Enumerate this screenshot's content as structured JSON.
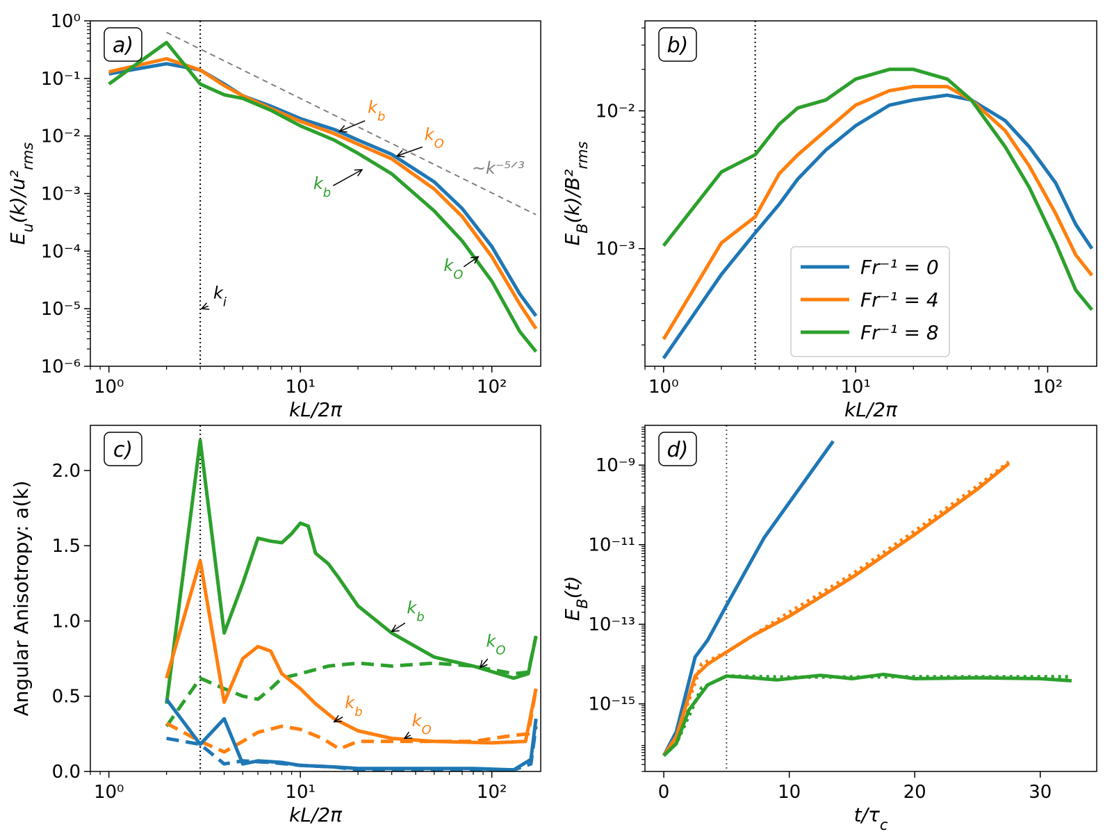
{
  "colors": {
    "blue": "#1f77b4",
    "orange": "#ff7f0e",
    "green": "#2ca02c",
    "gray": "#808080"
  },
  "legend": [
    {
      "label": "Fr⁻¹ = 0",
      "color": "#1f77b4"
    },
    {
      "label": "Fr⁻¹ = 4",
      "color": "#ff7f0e"
    },
    {
      "label": "Fr⁻¹ = 8",
      "color": "#2ca02c"
    }
  ],
  "chart_data": [
    {
      "id": "a",
      "type": "line",
      "title": "a)",
      "xlabel": "kL/2π",
      "ylabel": "E_u(k)/u²_rms",
      "xscale": "log",
      "yscale": "log",
      "xlim": [
        0.8,
        180
      ],
      "ylim": [
        1e-06,
        1
      ],
      "xticks": [
        1,
        10,
        100
      ],
      "xtick_labels": [
        "10⁰",
        "10¹",
        "10²"
      ],
      "yticks": [
        1e-06,
        1e-05,
        0.0001,
        0.001,
        0.01,
        0.1,
        1
      ],
      "ytick_labels": [
        "10⁻⁶",
        "10⁻⁵",
        "10⁻⁴",
        "10⁻³",
        "10⁻²",
        "10⁻¹",
        "10⁰"
      ],
      "vline": 3,
      "series": [
        {
          "name": "Fr⁻¹ = 0",
          "color": "#1f77b4",
          "dash": "solid",
          "x": [
            1,
            2,
            3,
            4,
            5,
            7,
            10,
            15,
            20,
            30,
            50,
            70,
            100,
            140,
            170
          ],
          "y": [
            0.12,
            0.18,
            0.14,
            0.08,
            0.05,
            0.033,
            0.02,
            0.013,
            0.0085,
            0.0048,
            0.0016,
            0.00055,
            0.00012,
            1.8e-05,
            7.5e-06
          ]
        },
        {
          "name": "Fr⁻¹ = 4",
          "color": "#ff7f0e",
          "dash": "solid",
          "x": [
            1,
            2,
            3,
            4,
            5,
            7,
            10,
            15,
            20,
            30,
            50,
            70,
            100,
            140,
            170
          ],
          "y": [
            0.13,
            0.22,
            0.14,
            0.075,
            0.05,
            0.03,
            0.018,
            0.011,
            0.0072,
            0.004,
            0.0012,
            0.0004,
            8e-05,
            1.2e-05,
            4.5e-06
          ]
        },
        {
          "name": "Fr⁻¹ = 8",
          "color": "#2ca02c",
          "dash": "solid",
          "x": [
            1,
            2,
            3,
            4,
            5,
            7,
            10,
            15,
            20,
            30,
            50,
            70,
            100,
            140,
            170
          ],
          "y": [
            0.08,
            0.42,
            0.08,
            0.052,
            0.045,
            0.028,
            0.015,
            0.0085,
            0.005,
            0.0022,
            0.0005,
            0.00015,
            3e-05,
            4e-06,
            1.8e-06
          ]
        },
        {
          "name": "k^-5/3",
          "color": "#808080",
          "dash": "dashed",
          "width": 2,
          "x": [
            2,
            170
          ],
          "y": [
            0.63,
            0.00043
          ]
        }
      ],
      "annotations": [
        {
          "text": "k_b",
          "color": "#ff7f0e",
          "tx": 25,
          "ty": 0.025,
          "ax": 16,
          "ay": 0.012
        },
        {
          "text": "k_O",
          "color": "#ff7f0e",
          "tx": 50,
          "ty": 0.0085,
          "ax": 32,
          "ay": 0.0045
        },
        {
          "text": "k_b",
          "color": "#2ca02c",
          "tx": 13,
          "ty": 0.0012,
          "ax": 21,
          "ay": 0.0026
        },
        {
          "text": "k_O",
          "color": "#2ca02c",
          "tx": 63,
          "ty": 4.5e-05,
          "ax": 85,
          "ay": 8e-05
        },
        {
          "text": "k_i",
          "color": "#000000",
          "tx": 3.8,
          "ty": 1.5e-05,
          "ax": 3.05,
          "ay": 1e-05
        },
        {
          "text": "~k⁻⁵ᐟ³",
          "color": "#808080",
          "tx": 108,
          "ty": 0.0022,
          "nolink": true
        }
      ]
    },
    {
      "id": "b",
      "type": "line",
      "title": "b)",
      "xlabel": "kL/2π",
      "ylabel": "E_B(k)/B²_rms",
      "xscale": "log",
      "yscale": "log",
      "xlim": [
        0.8,
        180
      ],
      "ylim": [
        0.00014,
        0.045
      ],
      "xticks": [
        1,
        10,
        100
      ],
      "xtick_labels": [
        "10⁰",
        "10¹",
        "10²"
      ],
      "yticks": [
        0.001,
        0.01
      ],
      "ytick_labels": [
        "10⁻³",
        "10⁻²"
      ],
      "vline": 3,
      "series": [
        {
          "name": "Fr⁻¹ = 0",
          "color": "#1f77b4",
          "dash": "solid",
          "x": [
            1,
            2,
            3,
            4,
            5,
            7,
            10,
            15,
            20,
            30,
            40,
            60,
            80,
            110,
            140,
            170
          ],
          "y": [
            0.00016,
            0.00065,
            0.0013,
            0.0021,
            0.0032,
            0.0052,
            0.0078,
            0.011,
            0.012,
            0.013,
            0.012,
            0.0085,
            0.0055,
            0.003,
            0.0015,
            0.001
          ]
        },
        {
          "name": "Fr⁻¹ = 4",
          "color": "#ff7f0e",
          "dash": "solid",
          "x": [
            1,
            2,
            3,
            4,
            5,
            7,
            10,
            15,
            20,
            30,
            40,
            60,
            80,
            110,
            140,
            170
          ],
          "y": [
            0.00022,
            0.0011,
            0.0017,
            0.0035,
            0.0048,
            0.0072,
            0.011,
            0.014,
            0.015,
            0.015,
            0.012,
            0.0072,
            0.004,
            0.0018,
            0.0009,
            0.00064
          ]
        },
        {
          "name": "Fr⁻¹ = 8",
          "color": "#2ca02c",
          "dash": "solid",
          "x": [
            1,
            2,
            3,
            4,
            5,
            7,
            10,
            15,
            20,
            30,
            40,
            60,
            80,
            110,
            140,
            170
          ],
          "y": [
            0.00105,
            0.0036,
            0.0048,
            0.008,
            0.0105,
            0.012,
            0.017,
            0.02,
            0.02,
            0.017,
            0.012,
            0.0055,
            0.0028,
            0.0011,
            0.0005,
            0.00036
          ]
        }
      ]
    },
    {
      "id": "c",
      "type": "line",
      "title": "c)",
      "xlabel": "kL/2π",
      "ylabel": "Angular Anisotropy: a(k)",
      "xscale": "log",
      "yscale": "linear",
      "xlim": [
        0.8,
        180
      ],
      "ylim": [
        0,
        2.3
      ],
      "xticks": [
        1,
        10,
        100
      ],
      "xtick_labels": [
        "10⁰",
        "10¹",
        "10²"
      ],
      "yticks": [
        0,
        0.5,
        1,
        1.5,
        2
      ],
      "ytick_labels": [
        "0.0",
        "0.5",
        "1.0",
        "1.5",
        "2.0"
      ],
      "vline": 3,
      "series": [
        {
          "name": "Fr⁻¹ = 8 solid",
          "color": "#2ca02c",
          "dash": "solid",
          "x": [
            2,
            3,
            4,
            5,
            6,
            7,
            8,
            9,
            10,
            11,
            12,
            14,
            16,
            20,
            30,
            50,
            80,
            130,
            155,
            170
          ],
          "y": [
            0.45,
            2.2,
            0.92,
            1.25,
            1.55,
            1.53,
            1.52,
            1.58,
            1.65,
            1.63,
            1.45,
            1.38,
            1.28,
            1.1,
            0.92,
            0.76,
            0.7,
            0.62,
            0.65,
            0.9
          ]
        },
        {
          "name": "Fr⁻¹ = 8 dashed",
          "color": "#2ca02c",
          "dash": "dashed",
          "x": [
            2,
            3,
            4,
            5,
            6,
            7,
            8,
            10,
            14,
            20,
            30,
            50,
            80,
            130,
            155,
            170
          ],
          "y": [
            0.3,
            0.62,
            0.55,
            0.5,
            0.48,
            0.55,
            0.62,
            0.65,
            0.7,
            0.72,
            0.7,
            0.72,
            0.7,
            0.65,
            0.66,
            0.9
          ]
        },
        {
          "name": "Fr⁻¹ = 4 solid",
          "color": "#ff7f0e",
          "dash": "solid",
          "x": [
            2,
            3,
            4,
            5,
            6,
            7,
            8,
            10,
            12,
            15,
            20,
            30,
            50,
            100,
            150,
            170
          ],
          "y": [
            0.62,
            1.4,
            0.46,
            0.75,
            0.83,
            0.8,
            0.65,
            0.55,
            0.45,
            0.35,
            0.27,
            0.22,
            0.2,
            0.19,
            0.2,
            0.55
          ]
        },
        {
          "name": "Fr⁻¹ = 4 dashed",
          "color": "#ff7f0e",
          "dash": "dashed",
          "x": [
            2,
            3,
            4,
            5,
            6,
            8,
            10,
            13,
            16,
            20,
            30,
            50,
            80,
            130,
            155,
            170
          ],
          "y": [
            0.32,
            0.2,
            0.13,
            0.2,
            0.26,
            0.3,
            0.28,
            0.22,
            0.15,
            0.2,
            0.2,
            0.2,
            0.2,
            0.24,
            0.25,
            0.55
          ]
        },
        {
          "name": "Fr⁻¹ = 0 solid",
          "color": "#1f77b4",
          "dash": "solid",
          "x": [
            2,
            3,
            4,
            5,
            6,
            8,
            10,
            15,
            20,
            40,
            80,
            130,
            160,
            170
          ],
          "y": [
            0.48,
            0.18,
            0.35,
            0.05,
            0.07,
            0.06,
            0.04,
            0.03,
            0.02,
            0.02,
            0.02,
            0.01,
            0.08,
            0.35
          ]
        },
        {
          "name": "Fr⁻¹ = 0 dashed",
          "color": "#1f77b4",
          "dash": "dashed",
          "x": [
            2,
            3,
            4,
            5,
            7,
            10,
            15,
            20,
            40,
            80,
            130,
            160,
            170
          ],
          "y": [
            0.22,
            0.18,
            0.05,
            0.07,
            0.06,
            0.04,
            0.03,
            0.01,
            0.01,
            0.01,
            0.01,
            0.05,
            0.3
          ]
        }
      ],
      "annotations": [
        {
          "text": "k_b",
          "color": "#2ca02c",
          "tx": 40,
          "ty": 1.05,
          "ax": 30,
          "ay": 0.93
        },
        {
          "text": "k_O",
          "color": "#2ca02c",
          "tx": 105,
          "ty": 0.83,
          "ax": 87,
          "ay": 0.69
        },
        {
          "text": "k_b",
          "color": "#ff7f0e",
          "tx": 19,
          "ty": 0.42,
          "ax": 15,
          "ay": 0.33
        },
        {
          "text": "k_O",
          "color": "#ff7f0e",
          "tx": 43,
          "ty": 0.3,
          "ax": 35,
          "ay": 0.22
        }
      ]
    },
    {
      "id": "d",
      "type": "line",
      "title": "d)",
      "xlabel": "t/τ_c",
      "ylabel": "E_B(t)",
      "xscale": "linear",
      "yscale": "log",
      "xlim": [
        -1.5,
        34.5
      ],
      "ylim": [
        2e-17,
        1e-08
      ],
      "xticks": [
        0,
        10,
        20,
        30
      ],
      "xtick_labels": [
        "0",
        "10",
        "20",
        "30"
      ],
      "yticks": [
        1e-15,
        1e-13,
        1e-11,
        1e-09
      ],
      "ytick_labels": [
        "10⁻¹⁵",
        "10⁻¹³",
        "10⁻¹¹",
        "10⁻⁹"
      ],
      "vline": 5,
      "vline_color": "#555555",
      "series": [
        {
          "name": "Fr⁻¹ = 0",
          "color": "#1f77b4",
          "dash": "solid",
          "x": [
            0,
            1,
            2.5,
            3.5,
            5,
            8,
            13.5
          ],
          "y": [
            5e-17,
            2e-16,
            1.5e-14,
            4e-14,
            3e-13,
            1.5e-11,
            4e-09
          ]
        },
        {
          "name": "Fr⁻¹ = 4 dotted",
          "color": "#ff7f0e",
          "dash": "dotted",
          "x": [
            0,
            1,
            3,
            5,
            10,
            15,
            20,
            25,
            27.5
          ],
          "y": [
            5e-17,
            1.5e-16,
            1e-14,
            2e-14,
            2e-13,
            1.8e-12,
            2.2e-11,
            3e-10,
            1.2e-09
          ]
        },
        {
          "name": "Fr⁻¹ = 4",
          "color": "#ff7f0e",
          "dash": "solid",
          "x": [
            0,
            1,
            2.5,
            3.5,
            5,
            7,
            10,
            15,
            20,
            25,
            27.5
          ],
          "y": [
            5e-17,
            1.5e-16,
            5e-15,
            1e-14,
            2e-14,
            5e-14,
            1.6e-13,
            1.5e-12,
            1.8e-11,
            2.5e-10,
            1.1e-09
          ]
        },
        {
          "name": "Fr⁻¹ = 8 dotted",
          "color": "#2ca02c",
          "dash": "dotted",
          "x": [
            0,
            1,
            3,
            5,
            10,
            20,
            32.5
          ],
          "y": [
            5e-17,
            1e-16,
            2.5e-15,
            5e-15,
            4.7e-15,
            4.8e-15,
            4.8e-15
          ]
        },
        {
          "name": "Fr⁻¹ = 8",
          "color": "#2ca02c",
          "dash": "solid",
          "x": [
            0,
            1,
            2,
            3.5,
            5,
            7,
            9,
            12.5,
            15,
            17.5,
            20,
            25,
            30,
            32.5
          ],
          "y": [
            5e-17,
            1e-16,
            7e-16,
            3e-15,
            5e-15,
            4.5e-15,
            4e-15,
            5.2e-15,
            4.3e-15,
            5.5e-15,
            4.3e-15,
            4.5e-15,
            4.3e-15,
            3.8e-15
          ]
        }
      ]
    }
  ]
}
